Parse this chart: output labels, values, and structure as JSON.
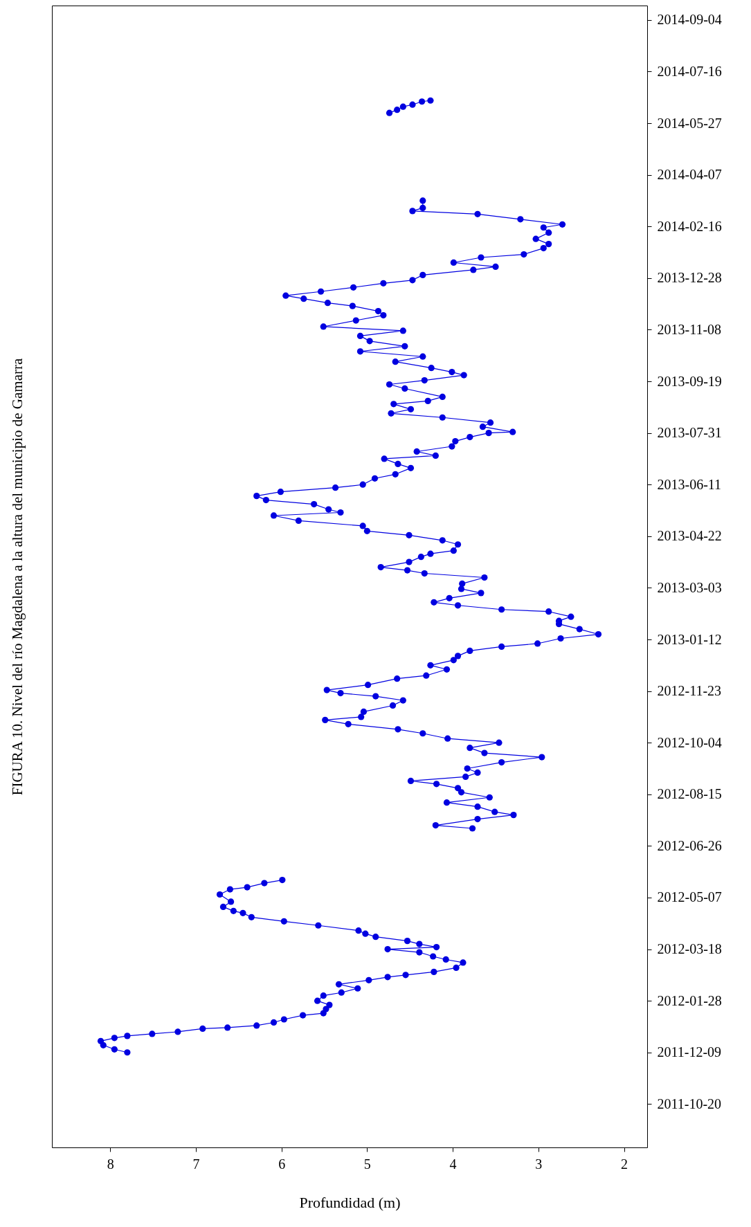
{
  "chart_data": {
    "type": "line",
    "orientation": "horizontal",
    "marker": "circle",
    "grid": false,
    "legend": false,
    "xlabel": "Profundidad (m)",
    "ylabel": "FIGURA 10. Nivel del río Magdalena a la altura del municipio de Gamarra",
    "xlim": [
      8.68,
      1.73
    ],
    "xticks": [
      8,
      7,
      6,
      5,
      4,
      3,
      2
    ],
    "ylim": [
      "2011-09-08",
      "2014-09-18"
    ],
    "yticks": [
      "2011-10-20",
      "2011-12-09",
      "2012-01-28",
      "2012-03-18",
      "2012-05-07",
      "2012-06-26",
      "2012-08-15",
      "2012-10-04",
      "2012-11-23",
      "2013-01-12",
      "2013-03-03",
      "2013-04-22",
      "2013-06-11",
      "2013-07-31",
      "2013-09-19",
      "2013-11-08",
      "2013-12-28",
      "2014-02-16",
      "2014-04-07",
      "2014-05-27",
      "2014-07-16",
      "2014-09-04"
    ],
    "x": [
      "2011-12-09",
      "2011-12-12",
      "2011-12-16",
      "2011-12-20",
      "2011-12-23",
      "2011-12-25",
      "2011-12-27",
      "2011-12-29",
      "2012-01-01",
      "2012-01-02",
      "2012-01-04",
      "2012-01-07",
      "2012-01-10",
      "2012-01-14",
      "2012-01-16",
      "2012-01-20",
      "2012-01-24",
      "2012-01-28",
      "2012-02-02",
      "2012-02-05",
      "2012-02-09",
      "2012-02-13",
      "2012-02-17",
      "2012-02-20",
      "2012-02-22",
      "2012-02-25",
      "2012-02-29",
      "2012-03-05",
      "2012-03-08",
      "2012-03-11",
      "2012-03-15",
      "2012-03-18",
      "2012-03-20",
      "2012-03-23",
      "2012-03-26",
      "2012-03-30",
      "2012-04-02",
      "2012-04-05",
      "2012-04-10",
      "2012-04-14",
      "2012-04-18",
      "2012-04-22",
      "2012-04-24",
      "2012-04-28",
      "2012-05-03",
      "2012-05-10",
      "2012-05-15",
      "2012-05-17",
      "2012-05-21",
      "2012-05-24",
      "2012-06-20",
      "2012-07-13",
      "2012-07-16",
      "2012-07-22",
      "2012-07-26",
      "2012-07-29",
      "2012-08-03",
      "2012-08-07",
      "2012-08-12",
      "2012-08-17",
      "2012-08-21",
      "2012-08-25",
      "2012-08-28",
      "2012-09-01",
      "2012-09-05",
      "2012-09-09",
      "2012-09-15",
      "2012-09-20",
      "2012-09-24",
      "2012-09-29",
      "2012-10-04",
      "2012-10-08",
      "2012-10-13",
      "2012-10-17",
      "2012-10-22",
      "2012-10-26",
      "2012-10-29",
      "2012-11-03",
      "2012-11-09",
      "2012-11-14",
      "2012-11-18",
      "2012-11-21",
      "2012-11-24",
      "2012-11-29",
      "2012-12-05",
      "2012-12-08",
      "2012-12-14",
      "2012-12-18",
      "2012-12-23",
      "2012-12-27",
      "2013-01-01",
      "2013-01-05",
      "2013-01-08",
      "2013-01-13",
      "2013-01-17",
      "2013-01-22",
      "2013-01-27",
      "2013-01-30",
      "2013-02-03",
      "2013-02-08",
      "2013-02-10",
      "2013-02-14",
      "2013-02-17",
      "2013-02-21",
      "2013-02-26",
      "2013-03-02",
      "2013-03-07",
      "2013-03-13",
      "2013-03-17",
      "2013-03-20",
      "2013-03-23",
      "2013-03-28",
      "2013-04-02",
      "2013-04-05",
      "2013-04-08",
      "2013-04-14",
      "2013-04-18",
      "2013-04-23",
      "2013-04-27",
      "2013-05-02",
      "2013-05-07",
      "2013-05-12",
      "2013-05-15",
      "2013-05-18",
      "2013-05-23",
      "2013-05-27",
      "2013-05-31",
      "2013-06-04",
      "2013-06-08",
      "2013-06-11",
      "2013-06-17",
      "2013-06-21",
      "2013-06-27",
      "2013-07-01",
      "2013-07-06",
      "2013-07-09",
      "2013-07-13",
      "2013-07-18",
      "2013-07-23",
      "2013-07-27",
      "2013-07-31",
      "2013-08-01",
      "2013-08-06",
      "2013-08-10",
      "2013-08-15",
      "2013-08-19",
      "2013-08-23",
      "2013-08-28",
      "2013-08-31",
      "2013-09-04",
      "2013-09-12",
      "2013-09-16",
      "2013-09-20",
      "2013-09-25",
      "2013-09-28",
      "2013-10-02",
      "2013-10-08",
      "2013-10-13",
      "2013-10-18",
      "2013-10-23",
      "2013-10-28",
      "2013-11-02",
      "2013-11-07",
      "2013-11-11",
      "2013-11-17",
      "2013-11-22",
      "2013-11-26",
      "2013-12-01",
      "2013-12-04",
      "2013-12-08",
      "2013-12-11",
      "2013-12-15",
      "2013-12-19",
      "2013-12-23",
      "2013-12-26",
      "2013-12-31",
      "2014-01-05",
      "2014-01-08",
      "2014-01-12",
      "2014-01-17",
      "2014-01-20",
      "2014-01-26",
      "2014-01-30",
      "2014-02-04",
      "2014-02-10",
      "2014-02-15",
      "2014-02-18",
      "2014-02-23",
      "2014-02-28",
      "2014-03-03",
      "2014-03-06",
      "2014-03-13",
      "2014-04-20",
      "2014-06-06",
      "2014-06-09",
      "2014-06-12",
      "2014-06-14",
      "2014-06-17",
      "2014-06-18"
    ],
    "series": [
      {
        "color": "#0000e0",
        "values": [
          7.8,
          7.95,
          8.08,
          8.11,
          7.95,
          7.8,
          7.51,
          7.21,
          6.92,
          6.63,
          6.29,
          6.09,
          5.97,
          5.75,
          5.51,
          5.48,
          5.44,
          5.58,
          5.51,
          5.3,
          5.11,
          5.33,
          4.98,
          4.76,
          4.55,
          4.22,
          3.96,
          3.88,
          4.08,
          4.23,
          4.39,
          4.76,
          4.19,
          4.39,
          4.53,
          4.9,
          5.02,
          5.1,
          5.57,
          5.97,
          6.35,
          6.45,
          6.56,
          6.68,
          6.59,
          6.72,
          6.6,
          6.4,
          6.2,
          5.99,
          null,
          3.77,
          4.2,
          3.71,
          3.29,
          3.51,
          3.71,
          4.07,
          3.57,
          3.9,
          3.94,
          4.19,
          4.49,
          3.85,
          3.71,
          3.83,
          3.43,
          2.96,
          3.63,
          3.8,
          3.46,
          4.06,
          4.35,
          4.64,
          5.22,
          5.49,
          5.07,
          5.04,
          4.7,
          4.58,
          4.9,
          5.31,
          5.47,
          4.99,
          4.65,
          4.31,
          4.07,
          4.26,
          3.99,
          3.94,
          3.8,
          3.43,
          3.01,
          2.74,
          2.3,
          2.52,
          2.76,
          2.76,
          2.62,
          2.88,
          3.43,
          3.94,
          4.22,
          4.04,
          3.67,
          3.9,
          3.89,
          3.63,
          4.33,
          4.53,
          4.84,
          4.51,
          4.37,
          4.26,
          3.99,
          3.94,
          4.12,
          4.51,
          5.0,
          5.05,
          5.8,
          6.09,
          5.31,
          5.45,
          5.62,
          6.18,
          6.29,
          6.01,
          5.37,
          5.05,
          4.91,
          4.67,
          4.49,
          4.64,
          4.8,
          4.2,
          4.42,
          4.01,
          3.97,
          3.8,
          3.58,
          3.3,
          3.65,
          3.56,
          4.12,
          4.72,
          4.49,
          4.69,
          4.29,
          4.12,
          4.56,
          4.74,
          4.33,
          3.87,
          4.01,
          4.25,
          4.67,
          4.35,
          5.08,
          4.56,
          4.97,
          5.08,
          4.58,
          5.51,
          5.13,
          4.81,
          4.87,
          5.17,
          5.46,
          5.74,
          5.95,
          5.54,
          5.16,
          4.81,
          4.47,
          4.35,
          3.76,
          3.5,
          3.99,
          3.67,
          3.17,
          2.94,
          2.88,
          3.03,
          2.88,
          2.94,
          2.72,
          3.21,
          3.71,
          4.47,
          4.35,
          4.35,
          null,
          4.74,
          4.65,
          4.58,
          4.47,
          4.36,
          4.26
        ]
      }
    ]
  }
}
